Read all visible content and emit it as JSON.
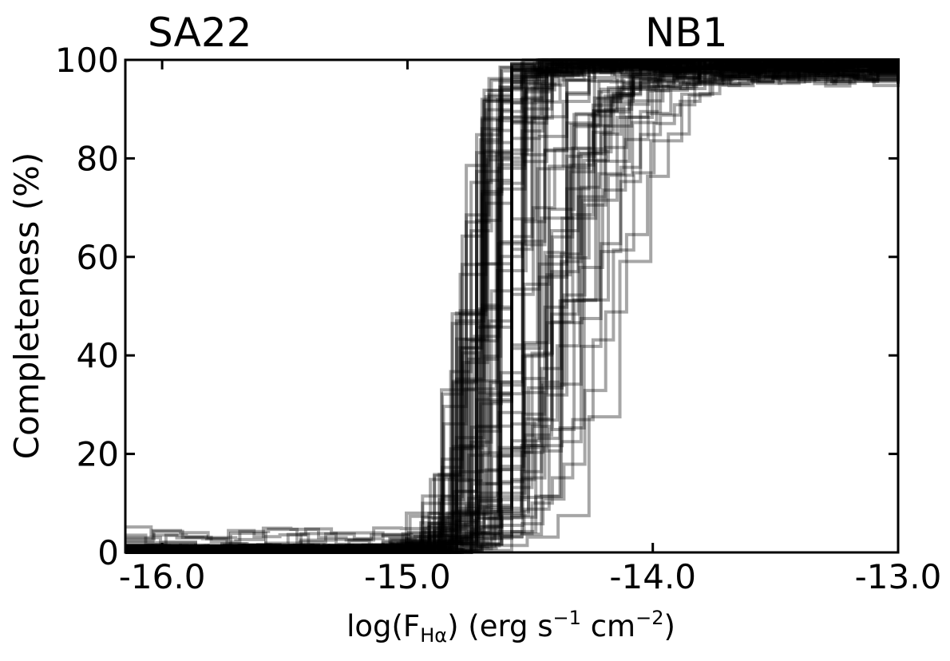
{
  "chart_data": {
    "type": "line",
    "annotations": {
      "left": "SA22",
      "right": "NB1"
    },
    "xlabel": {
      "prefix": "log(F",
      "subscript": "Hα",
      "suffix": ") (erg s",
      "sup1": "−1",
      "mid": " cm",
      "sup2": "−2",
      "end": ")"
    },
    "ylabel": "Completeness (%)",
    "xlim": [
      -16.15,
      -13.0
    ],
    "ylim": [
      0,
      100
    ],
    "xticks": [
      -16.0,
      -15.0,
      -14.0,
      -13.0
    ],
    "xtick_labels": [
      "-16.0",
      "-15.0",
      "-14.0",
      "-13.0"
    ],
    "yticks": [
      0,
      20,
      40,
      60,
      80,
      100
    ],
    "ytick_labels": [
      "0",
      "20",
      "40",
      "60",
      "80",
      "100"
    ],
    "grid": false,
    "line_color": "#000000",
    "line_opacity": 0.35,
    "series_note_count": 90,
    "series_family": {
      "main": {
        "count": 55,
        "x50_range": [
          -14.82,
          -14.58
        ],
        "steepness_range": [
          0.035,
          0.07
        ],
        "max_range": [
          98.5,
          100
        ]
      },
      "middle": {
        "count": 25,
        "x50_range": [
          -14.6,
          -14.38
        ],
        "steepness_range": [
          0.06,
          0.11
        ],
        "max_range": [
          96,
          99.5
        ]
      },
      "tail": {
        "count": 10,
        "x50_range": [
          -14.42,
          -14.15
        ],
        "steepness_range": [
          0.08,
          0.14
        ],
        "max_range": [
          96,
          98
        ]
      }
    }
  }
}
